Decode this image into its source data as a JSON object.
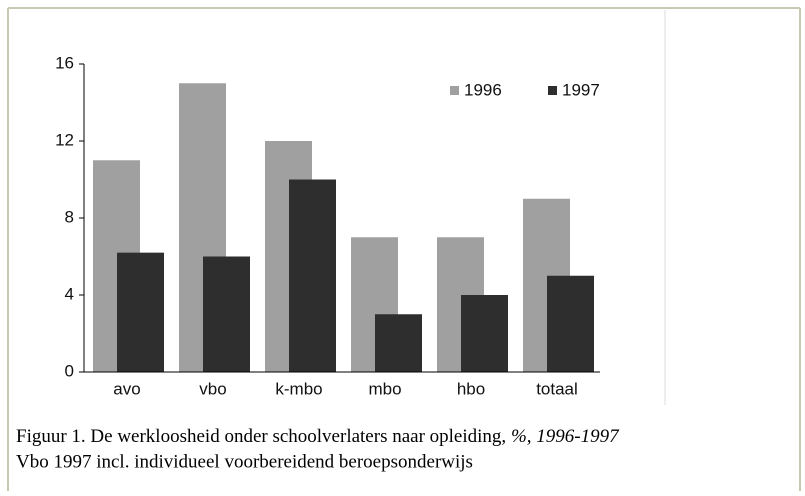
{
  "chart_data": {
    "type": "bar",
    "categories": [
      "avo",
      "vbo",
      "k-mbo",
      "mbo",
      "hbo",
      "totaal"
    ],
    "series": [
      {
        "name": "1996",
        "color": "#a0a0a0",
        "values": [
          11,
          15,
          12,
          7,
          7,
          9
        ]
      },
      {
        "name": "1997",
        "color": "#2e2e2e",
        "values": [
          6.2,
          6,
          10,
          3,
          4,
          5
        ]
      }
    ],
    "ylim": [
      0,
      16
    ],
    "yticks": [
      0,
      4,
      8,
      12,
      16
    ],
    "grid": false,
    "legend": "top-right"
  },
  "caption": {
    "text": "Figuur 1. De werkloosheid onder schoolverlaters naar opleiding, ",
    "emphasis": "%, 1996-1997",
    "note": "Vbo 1997 incl. individueel voorbereidend beroepsonderwijs"
  }
}
